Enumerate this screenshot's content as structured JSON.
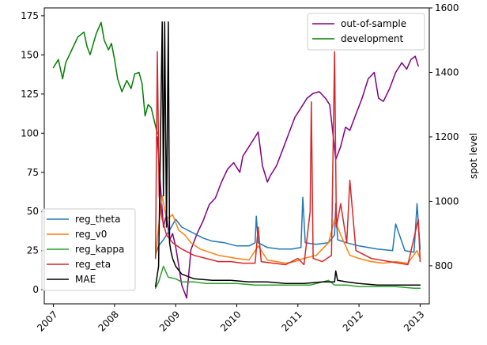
{
  "chart_data": {
    "type": "line",
    "title": "",
    "xlabel": "",
    "ylabel_left": "",
    "ylabel_right": "spot level",
    "xlim": [
      2006.85,
      2013.15
    ],
    "ylim_left": [
      -9,
      180
    ],
    "ylim_right": [
      682,
      1600
    ],
    "x_ticks": [
      2007,
      2008,
      2009,
      2010,
      2011,
      2012,
      2013
    ],
    "x_tick_labels": [
      "2007",
      "2008",
      "2009",
      "2010",
      "2011",
      "2012",
      "2013"
    ],
    "y_left_ticks": [
      0,
      25,
      50,
      75,
      100,
      125,
      150,
      175
    ],
    "y_left_tick_labels": [
      "0",
      "25",
      "50",
      "75",
      "100",
      "125",
      "150",
      "175"
    ],
    "y_right_ticks": [
      800,
      1000,
      1200,
      1400,
      1600
    ],
    "y_right_tick_labels": [
      "800",
      "1000",
      "1200",
      "1400",
      "1600"
    ],
    "legend_left": {
      "placement": "lower-left",
      "entries": [
        {
          "label": "reg_theta",
          "color": "#1f77b4"
        },
        {
          "label": "reg_v0",
          "color": "#ff7f0e"
        },
        {
          "label": "reg_kappa",
          "color": "#2ca02c"
        },
        {
          "label": "reg_eta",
          "color": "#d62728"
        },
        {
          "label": "MAE",
          "color": "#000000"
        }
      ]
    },
    "legend_right": {
      "placement": "upper-right",
      "entries": [
        {
          "label": "out-of-sample",
          "color": "#800080"
        },
        {
          "label": "development",
          "color": "#008000"
        }
      ]
    },
    "series_right": [
      {
        "name": "development",
        "color": "#008000",
        "x": [
          2007.0,
          2007.08,
          2007.15,
          2007.2,
          2007.3,
          2007.4,
          2007.5,
          2007.55,
          2007.6,
          2007.7,
          2007.78,
          2007.83,
          2007.9,
          2007.95,
          2008.0,
          2008.05,
          2008.12,
          2008.2,
          2008.27,
          2008.33,
          2008.4,
          2008.45,
          2008.5,
          2008.55,
          2008.6,
          2008.65,
          2008.7
        ],
        "y": [
          1415,
          1440,
          1380,
          1430,
          1470,
          1510,
          1525,
          1480,
          1455,
          1520,
          1555,
          1500,
          1470,
          1490,
          1440,
          1380,
          1340,
          1375,
          1350,
          1395,
          1400,
          1365,
          1265,
          1300,
          1290,
          1250,
          1210
        ]
      },
      {
        "name": "out-of-sample",
        "color": "#800080",
        "x": [
          2008.7,
          2008.75,
          2008.8,
          2008.85,
          2008.9,
          2008.95,
          2009.0,
          2009.05,
          2009.1,
          2009.18,
          2009.25,
          2009.35,
          2009.45,
          2009.55,
          2009.65,
          2009.75,
          2009.85,
          2009.95,
          2010.05,
          2010.1,
          2010.2,
          2010.3,
          2010.35,
          2010.42,
          2010.5,
          2010.55,
          2010.65,
          2010.75,
          2010.85,
          2010.95,
          2011.05,
          2011.15,
          2011.25,
          2011.35,
          2011.45,
          2011.52,
          2011.58,
          2011.62,
          2011.7,
          2011.78,
          2011.85,
          2011.95,
          2012.05,
          2012.15,
          2012.25,
          2012.32,
          2012.4,
          2012.5,
          2012.6,
          2012.7,
          2012.78,
          2012.85,
          2012.92,
          2012.97
        ],
        "y": [
          1200,
          1050,
          920,
          960,
          880,
          900,
          860,
          800,
          740,
          700,
          850,
          900,
          940,
          990,
          1010,
          1060,
          1100,
          1120,
          1090,
          1140,
          1170,
          1200,
          1215,
          1110,
          1060,
          1080,
          1110,
          1160,
          1210,
          1260,
          1290,
          1320,
          1335,
          1340,
          1320,
          1300,
          1200,
          1130,
          1170,
          1230,
          1220,
          1270,
          1320,
          1380,
          1400,
          1320,
          1310,
          1350,
          1400,
          1430,
          1410,
          1440,
          1450,
          1420
        ]
      }
    ],
    "series_left": [
      {
        "name": "reg_theta",
        "color": "#1f77b4",
        "x": [
          2008.67,
          2008.72,
          2008.8,
          2008.9,
          2009.0,
          2009.1,
          2009.2,
          2009.3,
          2009.45,
          2009.6,
          2009.8,
          2010.0,
          2010.2,
          2010.3,
          2010.32,
          2010.35,
          2010.5,
          2010.7,
          2010.9,
          2011.05,
          2011.08,
          2011.12,
          2011.3,
          2011.5,
          2011.6,
          2011.62,
          2011.65,
          2011.8,
          2012.0,
          2012.3,
          2012.55,
          2012.6,
          2012.75,
          2012.9,
          2012.95,
          2013.0
        ],
        "y": [
          22,
          28,
          32,
          38,
          45,
          40,
          38,
          36,
          33,
          31,
          30,
          28,
          28,
          30,
          47,
          30,
          27,
          26,
          26,
          27,
          59,
          30,
          29,
          30,
          35,
          55,
          32,
          30,
          28,
          26,
          25,
          42,
          25,
          24,
          55,
          26
        ]
      },
      {
        "name": "reg_v0",
        "color": "#ff7f0e",
        "x": [
          2008.67,
          2008.72,
          2008.78,
          2008.85,
          2008.95,
          2009.05,
          2009.15,
          2009.25,
          2009.4,
          2009.55,
          2009.7,
          2009.85,
          2010.0,
          2010.2,
          2010.35,
          2010.5,
          2010.65,
          2010.8,
          2010.95,
          2011.1,
          2011.3,
          2011.5,
          2011.6,
          2011.7,
          2011.85,
          2012.0,
          2012.2,
          2012.4,
          2012.6,
          2012.8,
          2012.95,
          2013.0
        ],
        "y": [
          20,
          40,
          60,
          45,
          48,
          38,
          35,
          30,
          26,
          24,
          22,
          21,
          20,
          19,
          28,
          19,
          18,
          17,
          18,
          20,
          22,
          30,
          45,
          35,
          22,
          20,
          18,
          17,
          18,
          17,
          25,
          20
        ]
      },
      {
        "name": "reg_kappa",
        "color": "#2ca02c",
        "x": [
          2008.67,
          2008.72,
          2008.8,
          2008.88,
          2009.0,
          2009.1,
          2009.3,
          2009.5,
          2009.8,
          2010.0,
          2010.3,
          2010.6,
          2010.9,
          2011.2,
          2011.5,
          2011.6,
          2011.8,
          2012.0,
          2012.3,
          2012.6,
          2012.9,
          2013.0
        ],
        "y": [
          1,
          5,
          15,
          8,
          7,
          5,
          5,
          4,
          4,
          4,
          3,
          3,
          3,
          3,
          6,
          3,
          3,
          2,
          2,
          2,
          1,
          1
        ]
      },
      {
        "name": "reg_eta",
        "color": "#d62728",
        "x": [
          2008.67,
          2008.7,
          2008.73,
          2008.78,
          2008.85,
          2008.95,
          2009.1,
          2009.3,
          2009.5,
          2009.7,
          2009.9,
          2010.1,
          2010.3,
          2010.35,
          2010.4,
          2010.6,
          2010.8,
          2011.0,
          2011.1,
          2011.2,
          2011.22,
          2011.25,
          2011.4,
          2011.55,
          2011.6,
          2011.63,
          2011.7,
          2011.8,
          2011.85,
          2011.95,
          2012.2,
          2012.5,
          2012.8,
          2012.97,
          2013.0
        ],
        "y": [
          20,
          152,
          60,
          45,
          35,
          30,
          26,
          22,
          20,
          18,
          18,
          17,
          17,
          40,
          18,
          17,
          16,
          20,
          16,
          50,
          120,
          20,
          18,
          22,
          152,
          40,
          55,
          30,
          70,
          25,
          20,
          18,
          16,
          45,
          18
        ]
      },
      {
        "name": "MAE",
        "color": "#000000",
        "x": [
          2008.67,
          2008.72,
          2008.78,
          2008.8,
          2008.82,
          2008.85,
          2008.88,
          2008.9,
          2008.92,
          2008.95,
          2009.0,
          2009.1,
          2009.3,
          2009.6,
          2009.9,
          2010.2,
          2010.5,
          2010.8,
          2011.1,
          2011.4,
          2011.6,
          2011.62,
          2011.65,
          2011.8,
          2012.0,
          2012.3,
          2012.6,
          2012.9,
          2013.0
        ],
        "y": [
          2,
          15,
          171,
          60,
          171,
          40,
          171,
          30,
          25,
          20,
          15,
          10,
          7,
          6,
          6,
          5,
          5,
          4,
          4,
          5,
          5,
          12,
          6,
          5,
          4,
          3,
          3,
          3,
          3
        ]
      }
    ]
  }
}
